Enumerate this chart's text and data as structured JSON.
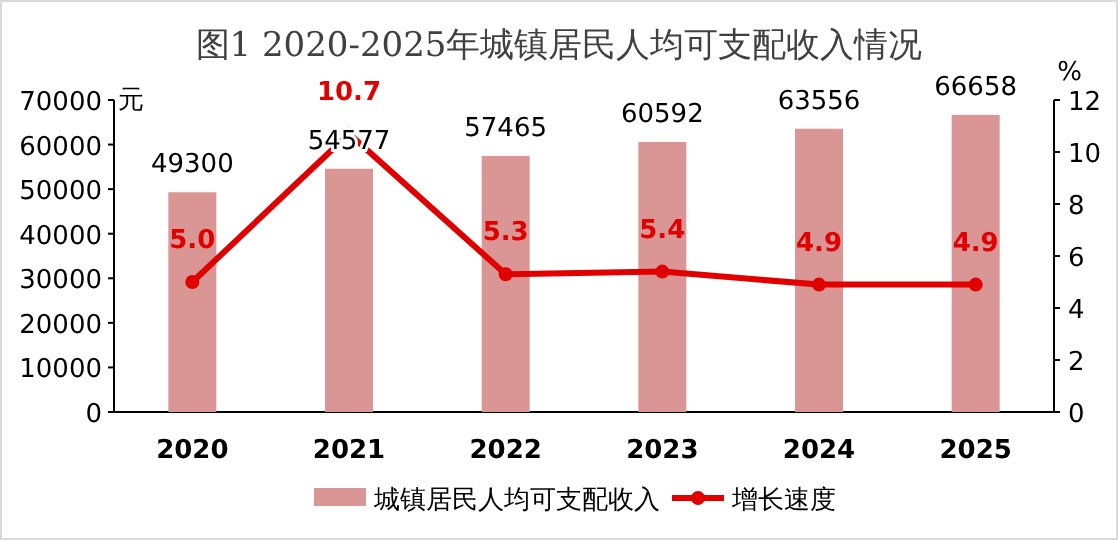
{
  "chart_data": {
    "type": "bar",
    "title": "图1  2020-2025年城镇居民人均可支配收入情况",
    "ylabel": "元",
    "y2label": "%",
    "categories": [
      "2020",
      "2021",
      "2022",
      "2023",
      "2024",
      "2025"
    ],
    "series": [
      {
        "name": "城镇居民人均可支配收入",
        "color": "#d99694",
        "values": [
          49300,
          54577,
          57465,
          60592,
          63556,
          66658
        ]
      },
      {
        "name": "增长速度",
        "type": "line",
        "axis": "y2",
        "color": "#e00000",
        "marker": "circle",
        "values": [
          5.0,
          10.7,
          5.3,
          5.4,
          4.9,
          4.9
        ],
        "value_labels": [
          "5.0",
          "10.7",
          "5.3",
          "5.4",
          "4.9",
          "4.9"
        ]
      }
    ],
    "data_labels": true,
    "ylim": [
      0,
      70000
    ],
    "yticks": [
      0,
      10000,
      20000,
      30000,
      40000,
      50000,
      60000,
      70000
    ],
    "y2lim": [
      0,
      12
    ],
    "y2ticks": [
      0,
      2,
      4,
      6,
      8,
      10,
      12
    ],
    "grid": false,
    "legend": "bottom"
  }
}
